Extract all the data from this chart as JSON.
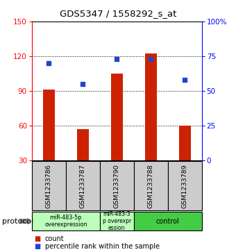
{
  "title": "GDS5347 / 1558292_s_at",
  "samples": [
    "GSM1233786",
    "GSM1233787",
    "GSM1233790",
    "GSM1233788",
    "GSM1233789"
  ],
  "counts": [
    91,
    57,
    105,
    122,
    60
  ],
  "percentiles": [
    70,
    55,
    73,
    73,
    58
  ],
  "ylim_left": [
    30,
    150
  ],
  "ylim_right": [
    0,
    100
  ],
  "yticks_left": [
    30,
    60,
    90,
    120,
    150
  ],
  "yticks_right": [
    0,
    25,
    50,
    75,
    100
  ],
  "ytick_right_labels": [
    "0",
    "25",
    "50",
    "75",
    "100%"
  ],
  "bar_color": "#cc2200",
  "dot_color": "#2244cc",
  "bg_color": "#cccccc",
  "plot_bg": "#ffffff",
  "proto_color_light": "#bbffbb",
  "proto_color_dark": "#44cc44",
  "protocol_text": "protocol",
  "legend_count_label": "count",
  "legend_percentile_label": "percentile rank within the sample"
}
